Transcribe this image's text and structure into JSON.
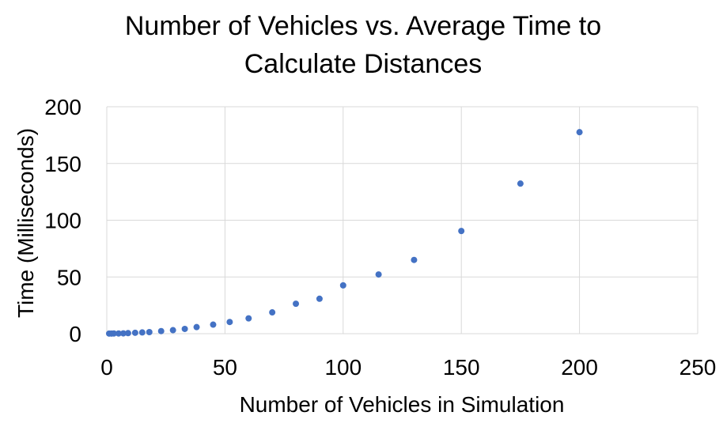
{
  "chart_data": {
    "type": "scatter",
    "title": "Number of Vehicles vs. Average Time to Calculate Distances",
    "title_lines": [
      "Number of Vehicles vs. Average Time to",
      "Calculate Distances"
    ],
    "xlabel": "Number of Vehicles in Simulation",
    "ylabel": "Time (Milliseconds)",
    "xlim": [
      0,
      250
    ],
    "ylim": [
      0,
      200
    ],
    "x_ticks": [
      0,
      50,
      100,
      150,
      200,
      250
    ],
    "y_ticks": [
      0,
      50,
      100,
      150,
      200
    ],
    "x_tick_labels": [
      "0",
      "50",
      "100",
      "150",
      "200",
      "250"
    ],
    "y_tick_labels": [
      "0",
      "50",
      "100",
      "150",
      "200"
    ],
    "grid": true,
    "legend": "none",
    "marker_color": "#4472C4",
    "series": [
      {
        "points": [
          [
            1,
            0.1
          ],
          [
            2,
            0.1
          ],
          [
            3,
            0.2
          ],
          [
            5,
            0.2
          ],
          [
            7,
            0.3
          ],
          [
            9,
            0.5
          ],
          [
            12,
            0.8
          ],
          [
            15,
            1.1
          ],
          [
            18,
            1.4
          ],
          [
            23,
            2.3
          ],
          [
            28,
            3.1
          ],
          [
            33,
            4.2
          ],
          [
            38,
            5.8
          ],
          [
            45,
            8.0
          ],
          [
            52,
            10.3
          ],
          [
            60,
            13.5
          ],
          [
            70,
            18.8
          ],
          [
            80,
            26.4
          ],
          [
            90,
            30.8
          ],
          [
            100,
            42.6
          ],
          [
            115,
            52.2
          ],
          [
            130,
            65.0
          ],
          [
            150,
            90.5
          ],
          [
            175,
            132.3
          ],
          [
            200,
            177.6
          ]
        ]
      }
    ]
  }
}
